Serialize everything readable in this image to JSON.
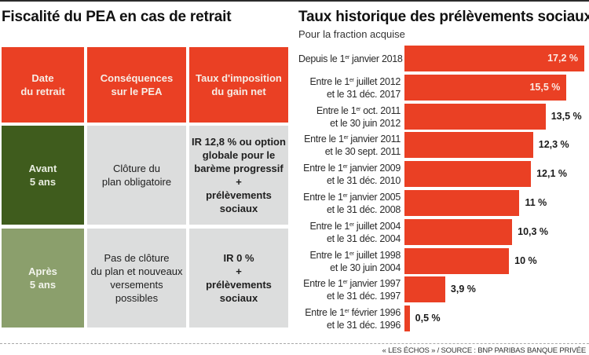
{
  "left": {
    "title": "Fiscalité du PEA en cas de retrait",
    "table": {
      "headers": [
        "Date\ndu retrait",
        "Conséquences\nsur le PEA",
        "Taux d'imposition\ndu gain net"
      ],
      "rows": [
        {
          "period": "Avant\n5 ans",
          "consequence": "Clôture du\nplan obligatoire",
          "tax": "IR 12,8 % ou option\nglobale pour le\nbarème progressif\n+\nprélèvements\nsociaux"
        },
        {
          "period": "Après\n5 ans",
          "consequence": "Pas de clôture\ndu plan et nouveaux\nversements\npossibles",
          "tax": "IR 0 %\n+\nprélèvements\nsociaux"
        }
      ]
    },
    "colors": {
      "header": "#ea4024",
      "before": "#3f5c1d",
      "after": "#8b9f6c",
      "cell": "#dcdddd"
    }
  },
  "chart_data": {
    "type": "bar",
    "orientation": "horizontal",
    "title": "Taux historique des prélèvements sociaux",
    "subtitle": "Pour la fraction acquise",
    "unit": "%",
    "bar_color": "#ea4024",
    "categories": [
      {
        "line1": "Depuis le 1",
        "sup": "er",
        "line1b": " janvier 2018",
        "line2": ""
      },
      {
        "line1": "Entre le 1",
        "sup": "er",
        "line1b": " juillet 2012",
        "line2": "et le 31 déc. 2017"
      },
      {
        "line1": "Entre le 1",
        "sup": "er",
        "line1b": " oct. 2011",
        "line2": "et le 30 juin 2012"
      },
      {
        "line1": "Entre le 1",
        "sup": "er",
        "line1b": " janvier 2011",
        "line2": "et le 30 sept. 2011"
      },
      {
        "line1": "Entre le 1",
        "sup": "er",
        "line1b": " janvier 2009",
        "line2": "et le 31 déc. 2010"
      },
      {
        "line1": "Entre le 1",
        "sup": "er",
        "line1b": " janvier 2005",
        "line2": "et le 31 déc. 2008"
      },
      {
        "line1": "Entre le 1",
        "sup": "er",
        "line1b": " juillet 2004",
        "line2": "et le 31 déc. 2004"
      },
      {
        "line1": "Entre le 1",
        "sup": "er",
        "line1b": " juillet 1998",
        "line2": "et le 30 juin 2004"
      },
      {
        "line1": "Entre le 1",
        "sup": "er",
        "line1b": " janvier 1997",
        "line2": "et le 31 déc. 1997"
      },
      {
        "line1": "Entre le 1",
        "sup": "er",
        "line1b": " février 1996",
        "line2": "et le 31 déc. 1996"
      }
    ],
    "values": [
      17.2,
      15.5,
      13.5,
      12.3,
      12.1,
      11,
      10.3,
      10,
      3.9,
      0.5
    ],
    "value_labels": [
      "17,2 %",
      "15,5 %",
      "13,5 %",
      "12,3 %",
      "12,1 %",
      "11 %",
      "10,3 %",
      "10 %",
      "3,9 %",
      "0,5 %"
    ],
    "labels_inside_bar": [
      true,
      true,
      false,
      false,
      false,
      false,
      false,
      false,
      false,
      false
    ],
    "xlim": [
      0,
      17.2
    ],
    "grid": false,
    "legend": "none"
  },
  "footer": "« LES ÉCHOS » / SOURCE : BNP PARIBAS BANQUE PRIVÉE"
}
